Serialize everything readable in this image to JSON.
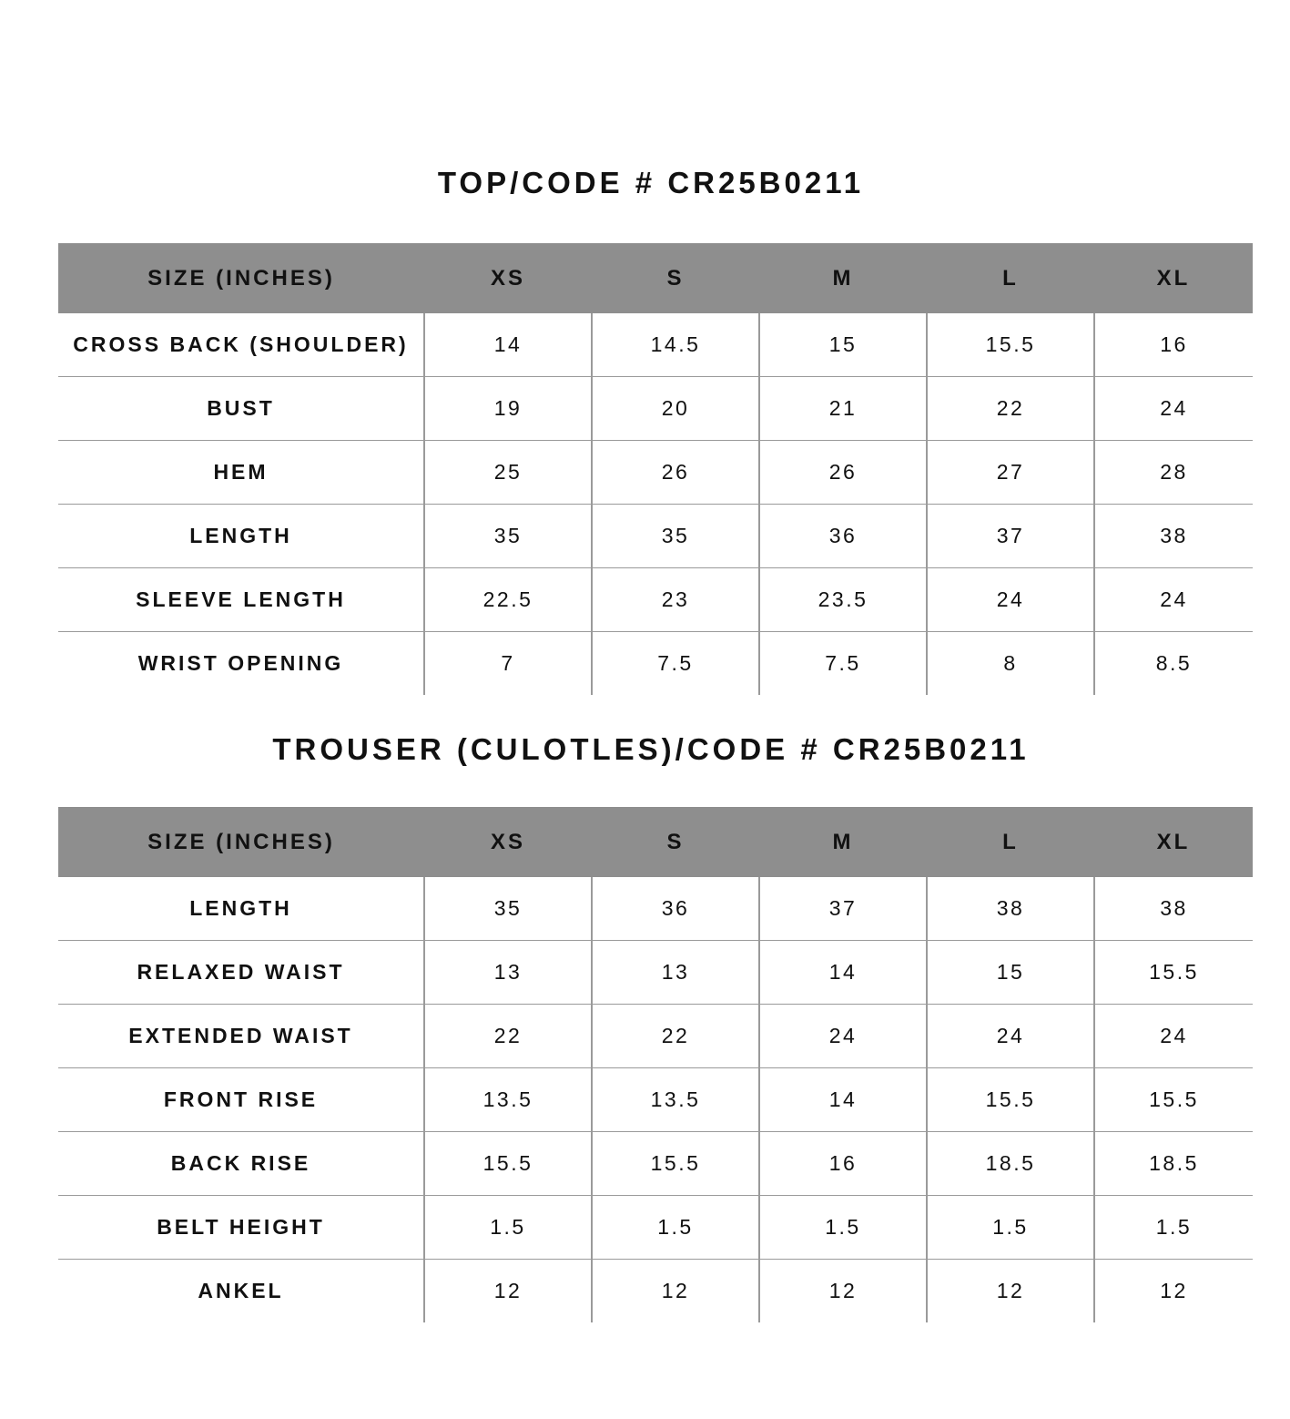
{
  "tables": [
    {
      "title": "TOP/CODE # CR25B0211",
      "headers": [
        "SIZE (INCHES)",
        "XS",
        "S",
        "M",
        "L",
        "XL"
      ],
      "rows": [
        {
          "label": "CROSS BACK (SHOULDER)",
          "values": [
            "14",
            "14.5",
            "15",
            "15.5",
            "16"
          ]
        },
        {
          "label": "BUST",
          "values": [
            "19",
            "20",
            "21",
            "22",
            "24"
          ]
        },
        {
          "label": "HEM",
          "values": [
            "25",
            "26",
            "26",
            "27",
            "28"
          ]
        },
        {
          "label": "LENGTH",
          "values": [
            "35",
            "35",
            "36",
            "37",
            "38"
          ]
        },
        {
          "label": "SLEEVE LENGTH",
          "values": [
            "22.5",
            "23",
            "23.5",
            "24",
            "24"
          ]
        },
        {
          "label": "WRIST OPENING",
          "values": [
            "7",
            "7.5",
            "7.5",
            "8",
            "8.5"
          ]
        }
      ]
    },
    {
      "title": "TROUSER (CULOTLES)/CODE # CR25B0211",
      "headers": [
        "SIZE (INCHES)",
        "XS",
        "S",
        "M",
        "L",
        "XL"
      ],
      "rows": [
        {
          "label": "LENGTH",
          "values": [
            "35",
            "36",
            "37",
            "38",
            "38"
          ]
        },
        {
          "label": "RELAXED WAIST",
          "values": [
            "13",
            "13",
            "14",
            "15",
            "15.5"
          ]
        },
        {
          "label": "EXTENDED WAIST",
          "values": [
            "22",
            "22",
            "24",
            "24",
            "24"
          ]
        },
        {
          "label": "FRONT RISE",
          "values": [
            "13.5",
            "13.5",
            "14",
            "15.5",
            "15.5"
          ]
        },
        {
          "label": "BACK RISE",
          "values": [
            "15.5",
            "15.5",
            "16",
            "18.5",
            "18.5"
          ]
        },
        {
          "label": "BELT HEIGHT",
          "values": [
            "1.5",
            "1.5",
            "1.5",
            "1.5",
            "1.5"
          ]
        },
        {
          "label": "ANKEL",
          "values": [
            "12",
            "12",
            "12",
            "12",
            "12"
          ]
        }
      ]
    }
  ],
  "colors": {
    "header_bg": "#8e8e8e",
    "grid": "#9a9a9a",
    "text": "#111111"
  }
}
